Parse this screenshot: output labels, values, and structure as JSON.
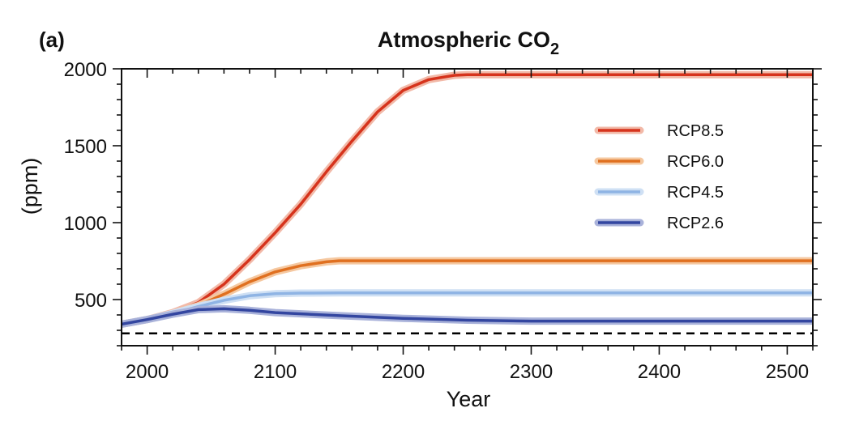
{
  "panel_label": "(a)",
  "chart_data": {
    "type": "line",
    "title": "Atmospheric CO",
    "title_subscript": "2",
    "xlabel": "Year",
    "ylabel": "(ppm)",
    "xlim": [
      1980,
      2520
    ],
    "ylim": [
      200,
      2000
    ],
    "x_ticks": [
      2000,
      2100,
      2200,
      2300,
      2400,
      2500
    ],
    "x_tick_labels": [
      "2000",
      "2100",
      "2200",
      "2300",
      "2400",
      "2500"
    ],
    "y_ticks": [
      500,
      1000,
      1500,
      2000
    ],
    "y_tick_labels": [
      "500",
      "1000",
      "1500",
      "2000"
    ],
    "grid": false,
    "legend_position": "center-right",
    "reference_line": {
      "y": 280,
      "style": "dashed",
      "color": "#000000"
    },
    "series": [
      {
        "name": "RCP8.5",
        "color": "#d6331c",
        "band_color": "#f2b9a8",
        "points": [
          [
            1980,
            340
          ],
          [
            2000,
            370
          ],
          [
            2020,
            415
          ],
          [
            2040,
            480
          ],
          [
            2060,
            600
          ],
          [
            2080,
            760
          ],
          [
            2100,
            935
          ],
          [
            2120,
            1120
          ],
          [
            2140,
            1330
          ],
          [
            2160,
            1530
          ],
          [
            2180,
            1720
          ],
          [
            2200,
            1860
          ],
          [
            2220,
            1930
          ],
          [
            2240,
            1958
          ],
          [
            2250,
            1962
          ],
          [
            2520,
            1962
          ]
        ]
      },
      {
        "name": "RCP6.0",
        "color": "#e07020",
        "band_color": "#f5c8a0",
        "points": [
          [
            1980,
            340
          ],
          [
            2000,
            370
          ],
          [
            2020,
            410
          ],
          [
            2040,
            460
          ],
          [
            2060,
            535
          ],
          [
            2080,
            615
          ],
          [
            2100,
            680
          ],
          [
            2120,
            720
          ],
          [
            2140,
            745
          ],
          [
            2150,
            752
          ],
          [
            2520,
            752
          ]
        ]
      },
      {
        "name": "RCP4.5",
        "color": "#8fb4e4",
        "band_color": "#cfe0f4",
        "points": [
          [
            1980,
            340
          ],
          [
            2000,
            370
          ],
          [
            2020,
            410
          ],
          [
            2040,
            455
          ],
          [
            2060,
            495
          ],
          [
            2080,
            525
          ],
          [
            2100,
            538
          ],
          [
            2120,
            542
          ],
          [
            2150,
            543
          ],
          [
            2520,
            543
          ]
        ]
      },
      {
        "name": "RCP2.6",
        "color": "#3346a0",
        "band_color": "#a9b2da",
        "points": [
          [
            1980,
            340
          ],
          [
            2000,
            370
          ],
          [
            2020,
            405
          ],
          [
            2040,
            435
          ],
          [
            2060,
            440
          ],
          [
            2080,
            430
          ],
          [
            2100,
            415
          ],
          [
            2150,
            395
          ],
          [
            2200,
            378
          ],
          [
            2250,
            366
          ],
          [
            2300,
            360
          ],
          [
            2520,
            360
          ]
        ]
      }
    ]
  }
}
